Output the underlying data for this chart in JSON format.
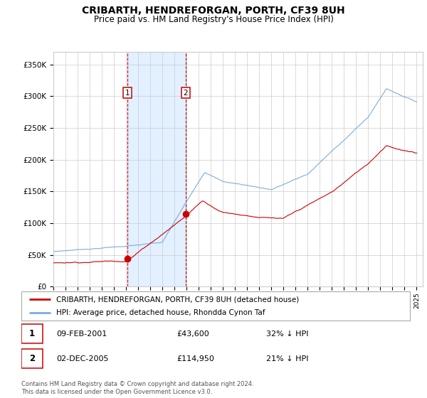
{
  "title": "CRIBARTH, HENDREFORGAN, PORTH, CF39 8UH",
  "subtitle": "Price paid vs. HM Land Registry's House Price Index (HPI)",
  "ylim": [
    0,
    370000
  ],
  "yticks": [
    0,
    50000,
    100000,
    150000,
    200000,
    250000,
    300000,
    350000
  ],
  "ytick_labels": [
    "£0",
    "£50K",
    "£100K",
    "£150K",
    "£200K",
    "£250K",
    "£300K",
    "£350K"
  ],
  "marker1_x": 2001.1,
  "marker1_price": 43600,
  "marker2_x": 2005.92,
  "marker2_price": 114950,
  "legend_red_label": "CRIBARTH, HENDREFORGAN, PORTH, CF39 8UH (detached house)",
  "legend_blue_label": "HPI: Average price, detached house, Rhondda Cynon Taf",
  "red_color": "#cc0000",
  "blue_color": "#7aade0",
  "shade_color": "#ddeeff",
  "grid_color": "#cccccc",
  "bg_color": "#ffffff",
  "footnote_line1": "Contains HM Land Registry data © Crown copyright and database right 2024.",
  "footnote_line2": "This data is licensed under the Open Government Licence v3.0."
}
